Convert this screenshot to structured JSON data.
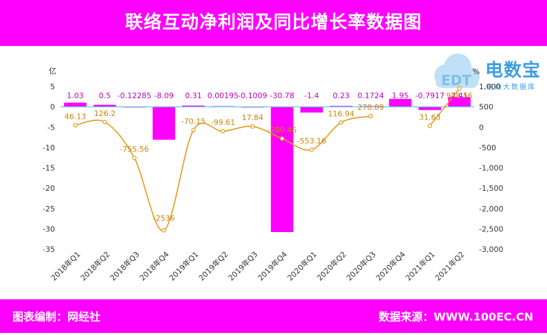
{
  "header": {
    "title": "联络互动净利润及同比增长率数据图"
  },
  "footer": {
    "left": "图表编制：网经社",
    "right": "数据来源：WWW.100EC.CN"
  },
  "logo": {
    "brand": "电数宝",
    "sub": "电商大数据库",
    "icon": "cloud-icon"
  },
  "colors": {
    "bar": "#ff00ff",
    "line": "#e39a12",
    "bar_label": "#c000c0",
    "line_label": "#c9830c"
  },
  "chart_data": {
    "type": "bar+line",
    "categories": [
      "2018年Q1",
      "2018年Q2",
      "2018年Q3",
      "2018年Q4",
      "2019年Q1",
      "2019年Q2",
      "2019年Q3",
      "2019年Q4",
      "2020年Q1",
      "2020年Q2",
      "2020年Q3",
      "2020年Q4",
      "2021年Q1",
      "2021年Q2"
    ],
    "bar_values": [
      1.03,
      0.5,
      -0.12285,
      -8.09,
      0.31,
      0.00195,
      -0.1009,
      -30.78,
      -1.4,
      0.23,
      0.1724,
      1.95,
      -0.7917,
      2.41
    ],
    "bar_labels": [
      "1.03",
      "0.5",
      "-0.12285",
      "-8.09",
      "0.31",
      "0.00195",
      "-0.1009",
      "-30.78",
      "-1.4",
      "0.23",
      "0.1724",
      "1.95",
      "-0.7917",
      "2.41"
    ],
    "line_values": [
      46.13,
      126.2,
      -755.56,
      -2536,
      -70.15,
      -99.61,
      17.84,
      -280.46,
      -553.16,
      116.94,
      270.89,
      null,
      31.63,
      948.56
    ],
    "line_labels": [
      "46.13",
      "126.2",
      "-755.56",
      "-2536",
      "-70.15",
      "-99.61",
      "17.84",
      "-280.46",
      "-553.16",
      "116.94",
      "270.89",
      "",
      "31.63",
      "948.56"
    ],
    "left_axis": {
      "unit": "亿",
      "min": -35,
      "max": 5,
      "ticks": [
        5,
        0,
        -5,
        -10,
        -15,
        -20,
        -25,
        -30,
        -35
      ],
      "tick_labels": [
        "5",
        "0",
        "-5",
        "-10",
        "-15",
        "-20",
        "-25",
        "-30",
        "-35"
      ]
    },
    "right_axis": {
      "unit": "%",
      "min": -3000,
      "max": 1000,
      "ticks": [
        1000,
        500,
        0,
        -500,
        -1000,
        -1500,
        -2000,
        -2500,
        -3000
      ],
      "tick_labels": [
        "1,000",
        "500",
        "0",
        "-500",
        "-1,000",
        "-1,500",
        "-2,000",
        "-2,500",
        "-3,000"
      ]
    },
    "grid": false,
    "legend": "none"
  }
}
